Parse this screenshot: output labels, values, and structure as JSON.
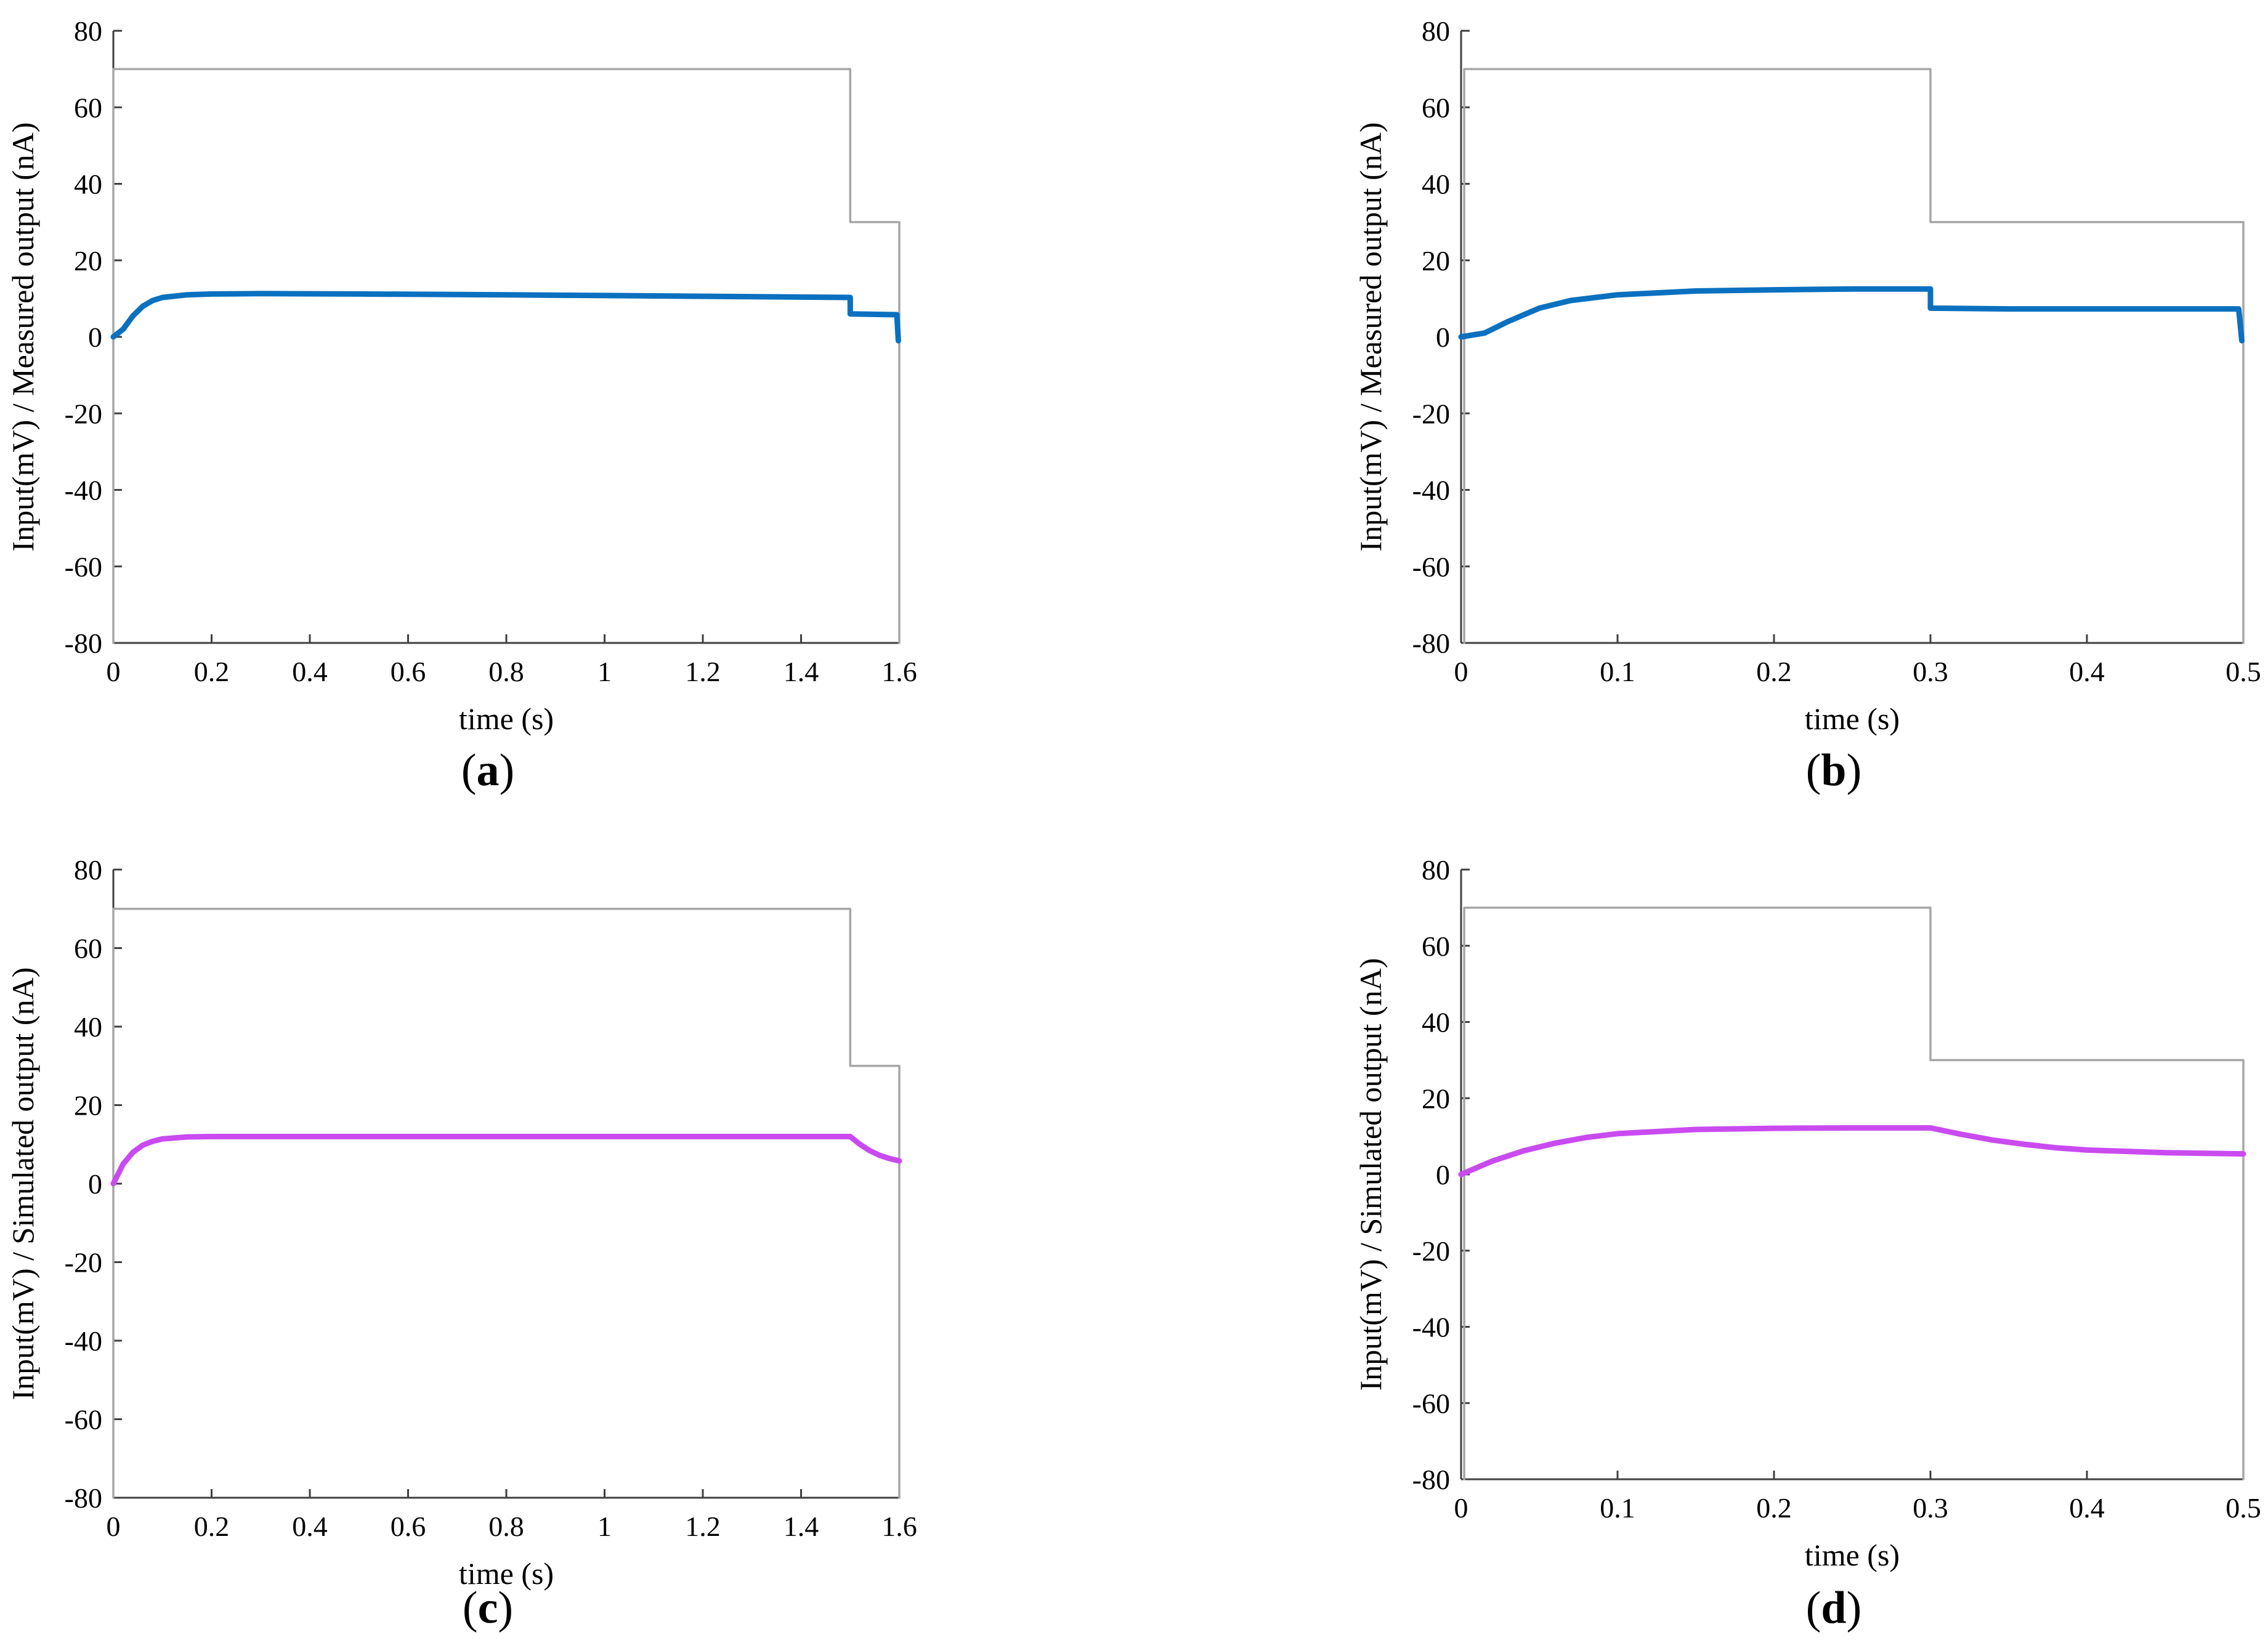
{
  "figure": {
    "colors": {
      "input_line": "#a6a6a6",
      "axis": "#404040",
      "measured": "#0a70c0",
      "simulated": "#c94bf0",
      "background": "#ffffff"
    }
  },
  "chart_data": [
    {
      "type": "line",
      "panel_label": "a",
      "title": "",
      "xlabel": "time (s)",
      "ylabel": "Input(mV) / Measured output (nA)",
      "xlim": [
        0,
        1.6
      ],
      "ylim": [
        -80,
        80
      ],
      "x_ticks": [
        0,
        0.2,
        0.4,
        0.6,
        0.8,
        1,
        1.2,
        1.4,
        1.6
      ],
      "y_ticks": [
        -80,
        -60,
        -40,
        -20,
        0,
        20,
        40,
        60,
        80
      ],
      "grid": false,
      "series": [
        {
          "name": "Input",
          "color": "#a6a6a6",
          "x": [
            0,
            0,
            1.5,
            1.5,
            1.6,
            1.6
          ],
          "y": [
            -80,
            70,
            70,
            30,
            30,
            -80
          ]
        },
        {
          "name": "Measured output",
          "color": "#0a70c0",
          "x": [
            0,
            0.02,
            0.04,
            0.06,
            0.08,
            0.1,
            0.15,
            0.2,
            0.3,
            0.5,
            0.8,
            1.0,
            1.2,
            1.4,
            1.5,
            1.5,
            1.595,
            1.598
          ],
          "y": [
            0,
            2,
            5.5,
            8,
            9.5,
            10.3,
            11.0,
            11.2,
            11.3,
            11.2,
            11.0,
            10.8,
            10.6,
            10.4,
            10.3,
            6.0,
            5.8,
            -1
          ]
        }
      ]
    },
    {
      "type": "line",
      "panel_label": "b",
      "title": "",
      "xlabel": "time (s)",
      "ylabel": "Input(mV) / Measured output (nA)",
      "xlim": [
        0,
        0.5
      ],
      "ylim": [
        -80,
        80
      ],
      "x_ticks": [
        0,
        0.1,
        0.2,
        0.3,
        0.4,
        0.5
      ],
      "y_ticks": [
        -80,
        -60,
        -40,
        -20,
        0,
        20,
        40,
        60,
        80
      ],
      "grid": false,
      "series": [
        {
          "name": "Input",
          "color": "#a6a6a6",
          "x": [
            0.002,
            0.002,
            0.3,
            0.3,
            0.5,
            0.5
          ],
          "y": [
            -80,
            70,
            70,
            30,
            30,
            -80
          ]
        },
        {
          "name": "Measured output",
          "color": "#0a70c0",
          "x": [
            0,
            0.015,
            0.03,
            0.05,
            0.07,
            0.1,
            0.15,
            0.2,
            0.25,
            0.3,
            0.3,
            0.35,
            0.4,
            0.45,
            0.497,
            0.499
          ],
          "y": [
            0,
            1,
            4,
            7.5,
            9.5,
            11,
            12,
            12.3,
            12.5,
            12.5,
            7.5,
            7.3,
            7.3,
            7.3,
            7.3,
            -1
          ]
        }
      ]
    },
    {
      "type": "line",
      "panel_label": "c",
      "title": "",
      "xlabel": "time (s)",
      "ylabel": "Input(mV) / Simulated output (nA)",
      "xlim": [
        0,
        1.6
      ],
      "ylim": [
        -80,
        80
      ],
      "x_ticks": [
        0,
        0.2,
        0.4,
        0.6,
        0.8,
        1,
        1.2,
        1.4,
        1.6
      ],
      "y_ticks": [
        -80,
        -60,
        -40,
        -20,
        0,
        20,
        40,
        60,
        80
      ],
      "grid": false,
      "series": [
        {
          "name": "Input",
          "color": "#a6a6a6",
          "x": [
            0,
            0,
            1.5,
            1.5,
            1.6,
            1.6
          ],
          "y": [
            -80,
            70,
            70,
            30,
            30,
            -80
          ]
        },
        {
          "name": "Simulated output",
          "color": "#c94bf0",
          "x": [
            0,
            0.02,
            0.04,
            0.06,
            0.08,
            0.1,
            0.15,
            0.2,
            0.3,
            0.6,
            1.0,
            1.4,
            1.5,
            1.52,
            1.54,
            1.56,
            1.58,
            1.6
          ],
          "y": [
            0,
            5,
            8,
            9.8,
            10.8,
            11.4,
            11.9,
            12,
            12,
            12,
            12,
            12,
            12,
            10,
            8.4,
            7.2,
            6.4,
            5.8
          ]
        }
      ]
    },
    {
      "type": "line",
      "panel_label": "d",
      "title": "",
      "xlabel": "time (s)",
      "ylabel": "Input(mV) / Simulated output (nA)",
      "xlim": [
        0,
        0.5
      ],
      "ylim": [
        -80,
        80
      ],
      "x_ticks": [
        0,
        0.1,
        0.2,
        0.3,
        0.4,
        0.5
      ],
      "y_ticks": [
        -80,
        -60,
        -40,
        -20,
        0,
        20,
        40,
        60,
        80
      ],
      "grid": false,
      "series": [
        {
          "name": "Input",
          "color": "#a6a6a6",
          "x": [
            0.002,
            0.002,
            0.3,
            0.3,
            0.5,
            0.5
          ],
          "y": [
            -80,
            70,
            70,
            30,
            30,
            -80
          ]
        },
        {
          "name": "Simulated output",
          "color": "#c94bf0",
          "x": [
            0,
            0.02,
            0.04,
            0.06,
            0.08,
            0.1,
            0.15,
            0.2,
            0.25,
            0.3,
            0.32,
            0.34,
            0.36,
            0.38,
            0.4,
            0.45,
            0.5
          ],
          "y": [
            0,
            3.5,
            6.2,
            8.2,
            9.7,
            10.7,
            11.8,
            12.1,
            12.2,
            12.2,
            10.5,
            9.0,
            7.9,
            7.0,
            6.4,
            5.7,
            5.4
          ]
        }
      ]
    }
  ]
}
